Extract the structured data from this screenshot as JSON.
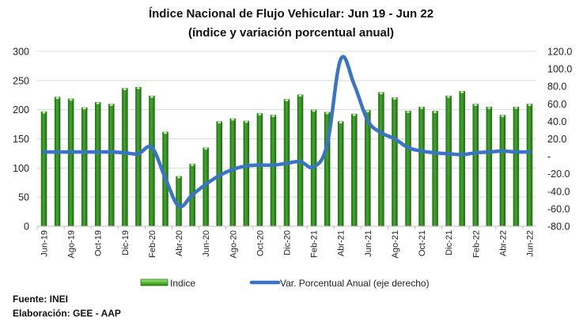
{
  "chart_data": {
    "type": "bar+line",
    "title": "Índice Nacional de Flujo Vehicular: Jun 19 - Jun 22",
    "subtitle": "(índice y variación porcentual anual)",
    "categories": [
      "Jun-19",
      "Jul-19",
      "Ago-19",
      "Sep-19",
      "Oct-19",
      "Nov-19",
      "Dic-19",
      "Ene-20",
      "Feb-20",
      "Mar-20",
      "Abr-20",
      "May-20",
      "Jun-20",
      "Jul-20",
      "Ago-20",
      "Sep-20",
      "Oct-20",
      "Nov-20",
      "Dic-20",
      "Ene-21",
      "Feb-21",
      "Mar-21",
      "Abr-21",
      "May-21",
      "Jun-21",
      "Jul-21",
      "Ago-21",
      "Sep-21",
      "Oct-21",
      "Nov-21",
      "Dic-21",
      "Ene-22",
      "Feb-22",
      "Mar-22",
      "Abr-22",
      "May-22",
      "Jun-22"
    ],
    "x_tick_labels": [
      "Jun-19",
      "Ago-19",
      "Oct-19",
      "Dic-19",
      "Feb-20",
      "Abr-20",
      "Jun-20",
      "Ago-20",
      "Oct-20",
      "Dic-20",
      "Feb-21",
      "Abr-21",
      "Jun-21",
      "Ago-21",
      "Oct-21",
      "Dic-21",
      "Feb-22",
      "Abr-22",
      "Jun-22"
    ],
    "series": [
      {
        "name": "Indice",
        "type": "bar",
        "axis": "left",
        "color": "#2e8b1e",
        "values": [
          197,
          222,
          219,
          204,
          213,
          210,
          237,
          239,
          224,
          162,
          86,
          107,
          135,
          180,
          185,
          181,
          194,
          191,
          218,
          226,
          200,
          196,
          180,
          193,
          199,
          230,
          221,
          198,
          205,
          198,
          224,
          232,
          210,
          205,
          191,
          205,
          210
        ]
      },
      {
        "name": "Var. Porcentual Anual (eje derecho)",
        "type": "line",
        "axis": "right",
        "color": "#3a74c4",
        "values": [
          5,
          5,
          5,
          5,
          5,
          5,
          4,
          3,
          10,
          -25,
          -57,
          -44,
          -32,
          -22,
          -15,
          -11,
          -10,
          -10,
          -8,
          -6,
          -12,
          14,
          111,
          82,
          41,
          27,
          20,
          10,
          6,
          4,
          3,
          2,
          4,
          5,
          6,
          5,
          5
        ]
      }
    ],
    "y_left": {
      "ylim": [
        0,
        300
      ],
      "ticks": [
        "0",
        "50",
        "100",
        "150",
        "200",
        "250",
        "300"
      ]
    },
    "y_right": {
      "ylim": [
        -80,
        120
      ],
      "ticks": [
        "-80.0",
        "-60.0",
        "-40.0",
        "-20.0",
        "-",
        "20.0",
        "40.0",
        "60.0",
        "80.0",
        "100.0",
        "120.0"
      ]
    },
    "grid": true,
    "legend_position": "bottom"
  },
  "legend": {
    "bar_label": "Indice",
    "line_label": "Var. Porcentual Anual (eje derecho)"
  },
  "footer": {
    "source": "Fuente: INEI",
    "author": "Elaboración: GEE - AAP"
  }
}
